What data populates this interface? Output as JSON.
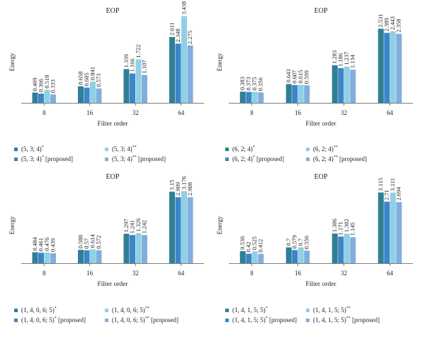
{
  "colors": [
    "#2f7f95",
    "#3a86c8",
    "#8fd0e4",
    "#82aedd"
  ],
  "chart_data": [
    {
      "type": "bar",
      "title": "EOP",
      "xlabel": "Filter order",
      "ylabel": "Energy",
      "categories": [
        "8",
        "16",
        "32",
        "64"
      ],
      "ylim": [
        0,
        3.6
      ],
      "series": [
        {
          "name": "(5, 3; 4)*",
          "values": [
            0.409,
            0.658,
            1.339,
            2.611
          ]
        },
        {
          "name": "(5, 3; 4)* [proposed]",
          "values": [
            0.366,
            0.605,
            1.166,
            2.348
          ]
        },
        {
          "name": "(5, 3; 4)**",
          "values": [
            0.518,
            0.841,
            1.722,
            3.438
          ]
        },
        {
          "name": "(5, 3; 4)** [proposed]",
          "values": [
            0.333,
            0.573,
            1.107,
            2.275
          ]
        }
      ],
      "legend_parts": [
        {
          "base": "(5, 3; 4)",
          "sup": "*",
          "suffix": ""
        },
        {
          "base": "(5, 3; 4)",
          "sup": "*",
          "suffix": " [proposed]"
        },
        {
          "base": "(5, 3; 4)",
          "sup": "**",
          "suffix": ""
        },
        {
          "base": "(5, 3; 4)",
          "sup": "**",
          "suffix": " [proposed]"
        }
      ]
    },
    {
      "type": "bar",
      "title": "EOP",
      "xlabel": "Filter order",
      "ylabel": "Energy",
      "categories": [
        "8",
        "16",
        "32",
        "64"
      ],
      "ylim": [
        0,
        3.1
      ],
      "series": [
        {
          "name": "(6, 2; 4)*",
          "values": [
            0.383,
            0.643,
            1.283,
            2.531
          ]
        },
        {
          "name": "(6, 2; 4)* [proposed]",
          "values": [
            0.373,
            0.607,
            1.186,
            2.389
          ]
        },
        {
          "name": "(6, 2; 4)**",
          "values": [
            0.375,
            0.615,
            1.237,
            2.443
          ]
        },
        {
          "name": "(6, 2; 4)** [proposed]",
          "values": [
            0.356,
            0.599,
            1.134,
            2.358
          ]
        }
      ],
      "legend_parts": [
        {
          "base": "(6, 2; 4)",
          "sup": "*",
          "suffix": ""
        },
        {
          "base": "(6, 2; 4)",
          "sup": "*",
          "suffix": " [proposed]"
        },
        {
          "base": "(6, 2; 4)",
          "sup": "**",
          "suffix": ""
        },
        {
          "base": "(6, 2; 4)",
          "sup": "**",
          "suffix": " [proposed]"
        }
      ]
    },
    {
      "type": "bar",
      "title": "EOP",
      "xlabel": "Filter order",
      "ylabel": "Energy",
      "categories": [
        "8",
        "16",
        "32",
        "64"
      ],
      "ylim": [
        0,
        3.5
      ],
      "series": [
        {
          "name": "(1, 4, 0, 6; 5)*",
          "values": [
            0.484,
            0.588,
            1.297,
            3.15
          ]
        },
        {
          "name": "(1, 4, 0, 6; 5)* [proposed]",
          "values": [
            0.461,
            0.57,
            1.241,
            2.909
          ]
        },
        {
          "name": "(1, 4, 0, 6; 5)**",
          "values": [
            0.476,
            0.614,
            1.326,
            3.176
          ]
        },
        {
          "name": "(1, 4, 0, 6; 5)** [proposed]",
          "values": [
            0.439,
            0.572,
            1.242,
            2.908
          ]
        }
      ],
      "legend_parts": [
        {
          "base": "(1, 4, 0, 6; 5)",
          "sup": "*",
          "suffix": ""
        },
        {
          "base": "(1, 4, 0, 6; 5)",
          "sup": "*",
          "suffix": " [proposed]"
        },
        {
          "base": "(1, 4, 0, 6; 5)",
          "sup": "**",
          "suffix": ""
        },
        {
          "base": "(1, 4, 0, 6; 5)",
          "sup": "**",
          "suffix": " [proposed]"
        }
      ]
    },
    {
      "type": "bar",
      "title": "EOP",
      "xlabel": "Filter order",
      "ylabel": "Energy",
      "categories": [
        "8",
        "16",
        "32",
        "64"
      ],
      "ylim": [
        0,
        3.5
      ],
      "series": [
        {
          "name": "(1, 4, 1, 5; 5)*",
          "values": [
            0.536,
            0.7,
            1.306,
            3.115
          ]
        },
        {
          "name": "(1, 4, 1, 5; 5)* [proposed]",
          "values": [
            0.42,
            0.579,
            1.171,
            2.71
          ]
        },
        {
          "name": "(1, 4, 1, 5; 5)**",
          "values": [
            0.525,
            0.7,
            1.302,
            3.111
          ]
        },
        {
          "name": "(1, 4, 1, 5; 5)** [proposed]",
          "values": [
            0.412,
            0.556,
            1.145,
            2.694
          ]
        }
      ],
      "legend_parts": [
        {
          "base": "(1, 4, 1, 5; 5)",
          "sup": "*",
          "suffix": ""
        },
        {
          "base": "(1, 4, 1, 5; 5)",
          "sup": "*",
          "suffix": " [proposed]"
        },
        {
          "base": "(1, 4, 1, 5; 5)",
          "sup": "**",
          "suffix": ""
        },
        {
          "base": "(1, 4, 1, 5; 5)",
          "sup": "**",
          "suffix": " [proposed]"
        }
      ]
    }
  ]
}
